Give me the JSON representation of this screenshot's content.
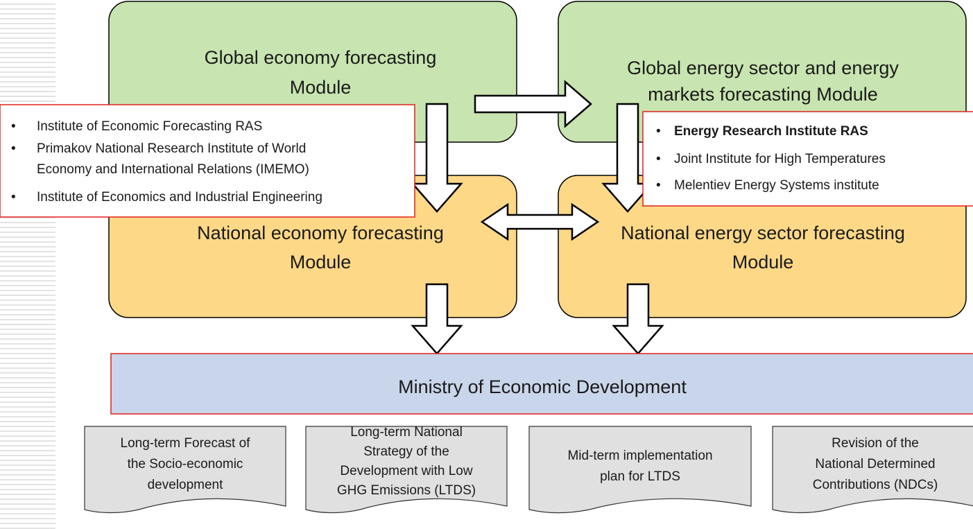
{
  "modules": [
    {
      "lines": [
        "Global economy forecasting",
        "Module"
      ]
    },
    {
      "lines": [
        "Global energy sector and energy",
        "markets forecasting Module"
      ]
    },
    {
      "lines": [
        "National economy forecasting",
        "Module"
      ]
    },
    {
      "lines": [
        "National energy sector forecasting",
        "Module"
      ]
    }
  ],
  "economy_institutes": [
    {
      "lines": [
        "Institute of Economic Forecasting RAS"
      ]
    },
    {
      "lines": [
        "Primakov National Research Institute of World",
        "Economy and International Relations (IMEMO)"
      ]
    },
    {
      "lines": [
        "Institute of Economics and Industrial Engineering"
      ]
    }
  ],
  "energy_institutes": [
    {
      "lines": [
        "Energy Research Institute RAS"
      ]
    },
    {
      "lines": [
        "Joint Institute for High Temperatures"
      ]
    },
    {
      "lines": [
        "Melentiev Energy Systems institute"
      ]
    }
  ],
  "ministry": "Ministry of Economic Development",
  "documents": [
    {
      "lines": [
        "Long-term Forecast of",
        "the Socio-economic",
        "development"
      ]
    },
    {
      "lines": [
        "Long-term National",
        "Strategy of the",
        "Development with Low",
        "GHG Emissions (LTDS)"
      ]
    },
    {
      "lines": [
        "Mid-term implementation",
        "plan for LTDS"
      ]
    },
    {
      "lines": [
        "Revision of the",
        "National Determined",
        "Contributions (NDCs)"
      ]
    }
  ]
}
